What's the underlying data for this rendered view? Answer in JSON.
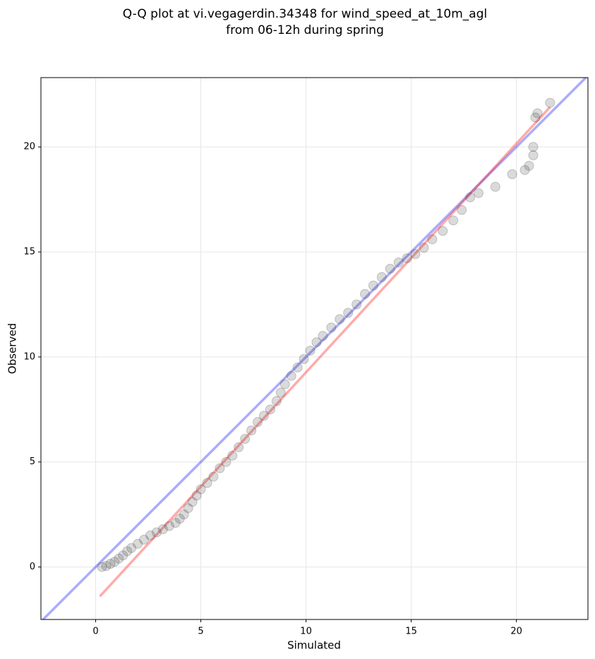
{
  "chart_data": {
    "type": "scatter",
    "title": [
      "Q-Q plot at vi.vegagerdin.34348 for wind_speed_at_10m_agl",
      "from 06-12h during spring"
    ],
    "xlabel": "Simulated",
    "ylabel": "Observed",
    "xlim": [
      -2.6,
      23.4
    ],
    "ylim": [
      -2.5,
      23.3
    ],
    "xticks": [
      0,
      5,
      10,
      15,
      20
    ],
    "yticks": [
      0,
      5,
      10,
      15,
      20
    ],
    "grid": true,
    "series": [
      {
        "color": "#333333",
        "x": [
          0.3,
          0.5,
          0.7,
          0.9,
          1.1,
          1.3,
          1.5,
          1.7,
          2.0,
          2.3,
          2.6,
          2.9,
          3.2,
          3.5,
          3.8,
          4.0,
          4.2,
          4.4,
          4.6,
          4.8,
          5.0,
          5.3,
          5.6,
          5.9,
          6.2,
          6.5,
          6.8,
          7.1,
          7.4,
          7.7,
          8.0,
          8.3,
          8.6,
          8.8,
          9.0,
          9.3,
          9.6,
          9.9,
          10.2,
          10.5,
          10.8,
          11.2,
          11.6,
          12.0,
          12.4,
          12.8,
          13.2,
          13.6,
          14.0,
          14.4,
          14.8,
          15.2,
          15.6,
          16.0,
          16.5,
          17.0,
          17.4,
          17.8,
          18.2,
          19.0,
          19.8,
          20.4,
          20.6,
          20.8,
          20.8,
          20.9,
          21.0,
          21.6
        ],
        "values": [
          0,
          0.05,
          0.15,
          0.25,
          0.4,
          0.55,
          0.75,
          0.9,
          1.1,
          1.3,
          1.5,
          1.65,
          1.8,
          1.95,
          2.1,
          2.3,
          2.5,
          2.8,
          3.1,
          3.4,
          3.7,
          4.0,
          4.3,
          4.7,
          5.0,
          5.3,
          5.7,
          6.1,
          6.5,
          6.9,
          7.2,
          7.5,
          7.9,
          8.3,
          8.7,
          9.1,
          9.5,
          9.9,
          10.3,
          10.7,
          11.0,
          11.4,
          11.8,
          12.1,
          12.5,
          13.0,
          13.4,
          13.8,
          14.2,
          14.5,
          14.7,
          14.9,
          15.2,
          15.6,
          16.0,
          16.5,
          17.0,
          17.6,
          17.8,
          18.1,
          18.7,
          18.9,
          19.1,
          19.6,
          20.0,
          21.4,
          21.6,
          22.1
        ]
      }
    ],
    "lines": [
      {
        "color": "#0000ff",
        "x": [
          -2.6,
          23.4
        ],
        "values": [
          -2.6,
          23.4
        ]
      },
      {
        "color": "#ff0000",
        "x": [
          0.2,
          21.6
        ],
        "values": [
          -1.4,
          21.9
        ]
      }
    ]
  }
}
